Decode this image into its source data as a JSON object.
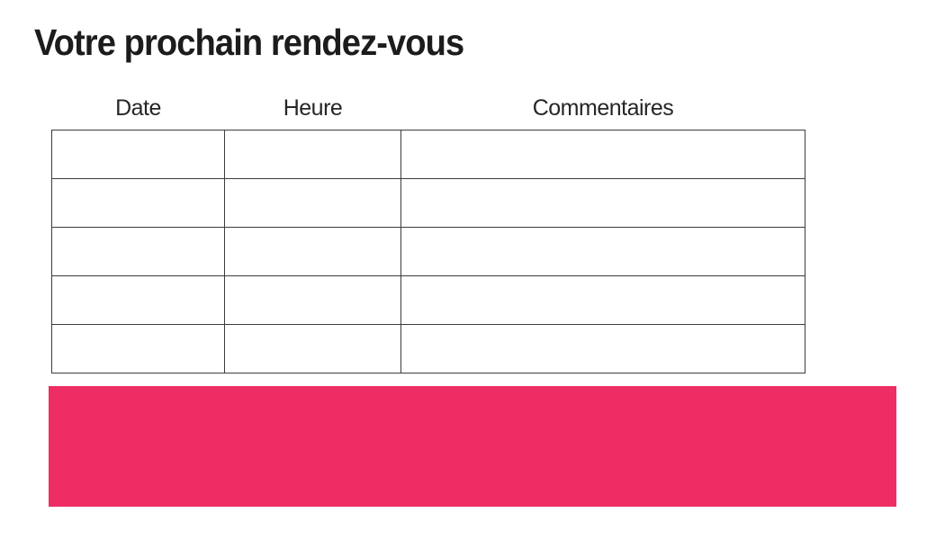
{
  "page": {
    "title": "Votre prochain rendez-vous"
  },
  "appointment_table": {
    "headers": [
      "Date",
      "Heure",
      "Commentaires"
    ],
    "rows": [
      [
        "",
        "",
        ""
      ],
      [
        "",
        "",
        ""
      ],
      [
        "",
        "",
        ""
      ],
      [
        "",
        "",
        ""
      ],
      [
        "",
        "",
        ""
      ]
    ]
  },
  "banner": {
    "color": "#ED2D64"
  },
  "colors": {
    "title_text": "#1c1c1c",
    "header_text": "#262626",
    "table_border": "#3c3c3c"
  }
}
